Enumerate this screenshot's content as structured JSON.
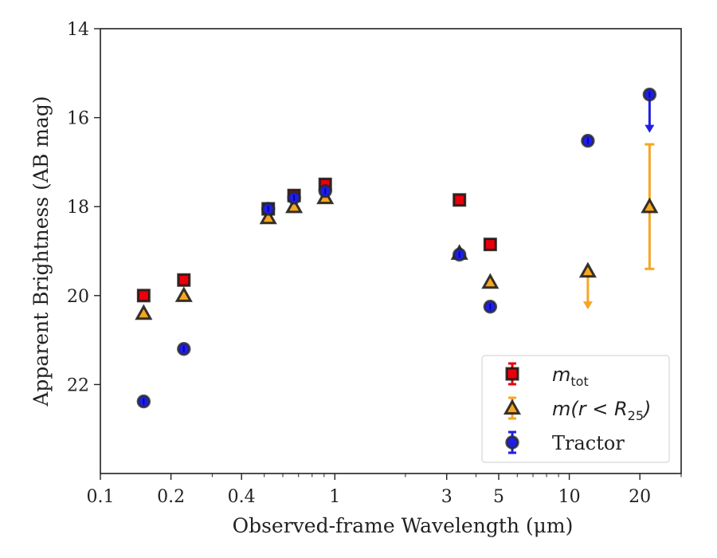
{
  "chart_data": {
    "type": "scatter",
    "xlabel": "Observed-frame Wavelength (μm)",
    "ylabel": "Apparent Brightness (AB mag)",
    "xscale": "log",
    "xlim": [
      0.1,
      30
    ],
    "ylim": [
      24,
      14
    ],
    "y_inverted": true,
    "xticks": [
      0.1,
      0.2,
      0.4,
      1,
      3,
      5,
      10,
      20
    ],
    "xtick_labels": [
      "0.1",
      "0.2",
      "0.4",
      "1",
      "3",
      "5",
      "10",
      "20"
    ],
    "yticks": [
      14,
      16,
      18,
      20,
      22
    ],
    "ytick_labels": [
      "14",
      "16",
      "18",
      "20",
      "22"
    ],
    "grid": false,
    "legend_position": "lower-right",
    "series": [
      {
        "name": "m_tot",
        "marker": "square",
        "color": "#e8000b",
        "points": [
          {
            "x": 0.153,
            "y": 20.0
          },
          {
            "x": 0.227,
            "y": 19.65
          },
          {
            "x": 0.52,
            "y": 18.05
          },
          {
            "x": 0.67,
            "y": 17.75
          },
          {
            "x": 0.91,
            "y": 17.5
          },
          {
            "x": 3.4,
            "y": 17.85
          },
          {
            "x": 4.6,
            "y": 18.85
          }
        ]
      },
      {
        "name": "m(r < R25)",
        "marker": "triangle",
        "color": "#f5a623",
        "points": [
          {
            "x": 0.153,
            "y": 20.4
          },
          {
            "x": 0.227,
            "y": 20.0
          },
          {
            "x": 0.52,
            "y": 18.25
          },
          {
            "x": 0.67,
            "y": 18.0
          },
          {
            "x": 0.91,
            "y": 17.8
          },
          {
            "x": 3.4,
            "y": 19.05
          },
          {
            "x": 4.6,
            "y": 19.7
          },
          {
            "x": 12,
            "y": 19.45,
            "upper_limit": true
          },
          {
            "x": 22,
            "y": 18.0,
            "yerr": 1.4
          }
        ]
      },
      {
        "name": "Tractor",
        "marker": "circle",
        "color": "#1f1fe0",
        "points": [
          {
            "x": 0.153,
            "y": 22.38
          },
          {
            "x": 0.227,
            "y": 21.2
          },
          {
            "x": 0.52,
            "y": 18.05
          },
          {
            "x": 0.67,
            "y": 17.8
          },
          {
            "x": 0.91,
            "y": 17.65
          },
          {
            "x": 3.4,
            "y": 19.08
          },
          {
            "x": 4.6,
            "y": 20.25
          },
          {
            "x": 12,
            "y": 16.52
          },
          {
            "x": 22,
            "y": 15.48,
            "upper_limit": true
          }
        ]
      }
    ],
    "legend": [
      {
        "series": "m_tot",
        "main": "m",
        "sub": "tot",
        "suffix": "",
        "style": "math"
      },
      {
        "series": "m(r < R25)",
        "main": "m(r < R",
        "sub": "25",
        "suffix": ")",
        "style": "math"
      },
      {
        "series": "Tractor",
        "main": "Tractor",
        "sub": "",
        "suffix": "",
        "style": "text"
      }
    ]
  }
}
